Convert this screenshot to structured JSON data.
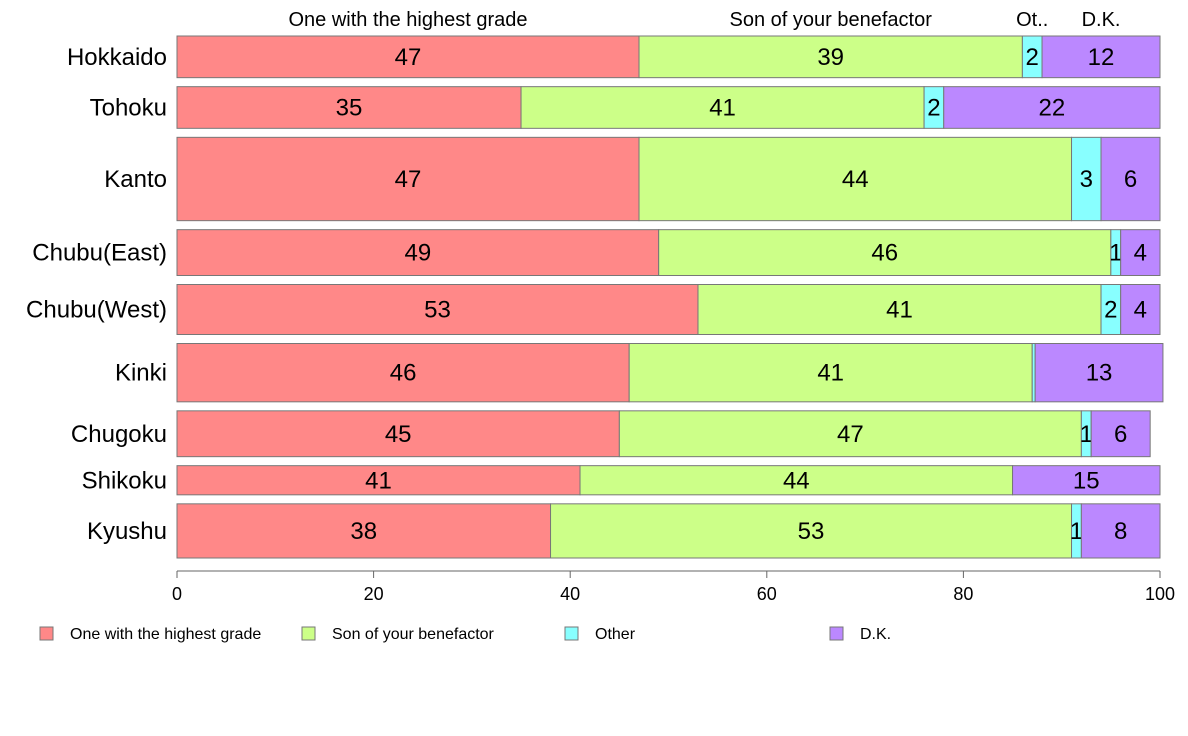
{
  "chart_data": {
    "type": "bar",
    "orientation": "horizontal-stacked",
    "categories": [
      "Hokkaido",
      "Tohoku",
      "Kanto",
      "Chubu(East)",
      "Chubu(West)",
      "Kinki",
      "Chugoku",
      "Shikoku",
      "Kyushu"
    ],
    "series": [
      {
        "name": "One with the highest grade",
        "short": "One with the highest grade",
        "color": "#ff8888",
        "values": [
          47,
          35,
          47,
          49,
          53,
          46,
          45,
          41,
          38
        ],
        "labels": [
          "47",
          "35",
          "47",
          "49",
          "53",
          "46",
          "45",
          "41",
          "38"
        ]
      },
      {
        "name": "Son of your benefactor",
        "short": "Son of your benefactor",
        "color": "#ccff88",
        "values": [
          39,
          41,
          44,
          46,
          41,
          41,
          47,
          44,
          53
        ],
        "labels": [
          "39",
          "41",
          "44",
          "46",
          "41",
          "41",
          "47",
          "44",
          "53"
        ]
      },
      {
        "name": "Other",
        "short": "Ot..",
        "color": "#88ffff",
        "values": [
          2,
          2,
          3,
          1,
          2,
          0.3,
          1,
          0,
          1
        ],
        "labels": [
          "2",
          "2",
          "3",
          "1",
          "2",
          "",
          "1",
          "",
          "1"
        ]
      },
      {
        "name": "D.K.",
        "short": "D.K.",
        "color": "#bb88ff",
        "values": [
          12,
          22,
          6,
          4,
          4,
          13,
          6,
          15,
          8
        ],
        "labels": [
          "12",
          "22",
          "6",
          "4",
          "4",
          "13",
          "6",
          "15",
          "8"
        ]
      }
    ],
    "bar_weights": [
      1,
      1,
      2,
      1.1,
      1.2,
      1.4,
      1.1,
      0.7,
      1.3
    ],
    "xlim": [
      0,
      100
    ],
    "xticks": [
      "0",
      "20",
      "40",
      "60",
      "80",
      "100"
    ],
    "legend_position": "bottom",
    "grid": false
  }
}
